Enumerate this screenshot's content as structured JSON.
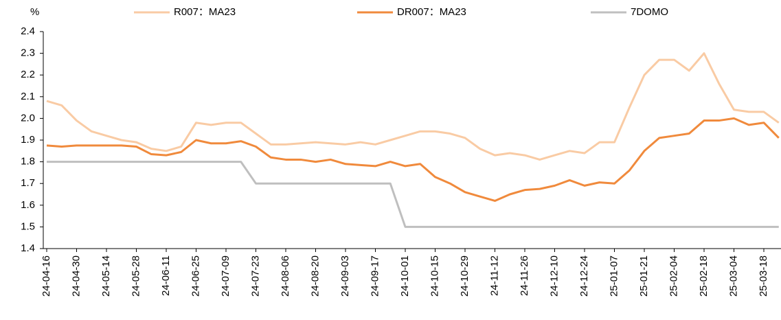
{
  "chart_data": {
    "type": "line",
    "y_label": "%",
    "categories": [
      "24-04-16",
      null,
      "24-04-30",
      null,
      "24-05-14",
      null,
      "24-05-28",
      null,
      "24-06-11",
      null,
      "24-06-25",
      null,
      "24-07-09",
      null,
      "24-07-23",
      null,
      "24-08-06",
      null,
      "24-08-20",
      null,
      "24-09-03",
      null,
      "24-09-17",
      null,
      "24-10-01",
      null,
      "24-10-15",
      null,
      "24-10-29",
      null,
      "24-11-12",
      null,
      "24-11-26",
      null,
      "24-12-10",
      null,
      "24-12-24",
      null,
      "25-01-07",
      null,
      "25-01-21",
      null,
      "25-02-04",
      null,
      "25-02-18",
      null,
      "25-03-04",
      null,
      "25-03-18",
      null
    ],
    "series": [
      {
        "name": "R007：MA23",
        "color": "#f9cba4",
        "values": [
          2.08,
          2.06,
          1.99,
          1.94,
          1.92,
          1.9,
          1.89,
          1.86,
          1.85,
          1.87,
          1.98,
          1.97,
          1.98,
          1.98,
          1.93,
          1.88,
          1.88,
          1.885,
          1.89,
          1.885,
          1.88,
          1.89,
          1.88,
          1.9,
          1.92,
          1.94,
          1.94,
          1.93,
          1.91,
          1.86,
          1.83,
          1.84,
          1.83,
          1.81,
          1.83,
          1.85,
          1.84,
          1.89,
          1.89,
          2.05,
          2.2,
          2.27,
          2.27,
          2.22,
          2.3,
          2.16,
          2.04,
          2.03,
          2.03,
          1.98
        ]
      },
      {
        "name": "DR007：MA23",
        "color": "#f08a3c",
        "values": [
          1.875,
          1.87,
          1.875,
          1.875,
          1.875,
          1.875,
          1.87,
          1.835,
          1.83,
          1.845,
          1.9,
          1.885,
          1.885,
          1.895,
          1.87,
          1.82,
          1.81,
          1.81,
          1.8,
          1.81,
          1.79,
          1.785,
          1.78,
          1.8,
          1.78,
          1.79,
          1.73,
          1.7,
          1.66,
          1.64,
          1.62,
          1.65,
          1.67,
          1.675,
          1.69,
          1.715,
          1.69,
          1.705,
          1.7,
          1.76,
          1.85,
          1.91,
          1.92,
          1.93,
          1.99,
          1.99,
          2.0,
          1.97,
          1.98,
          1.91
        ]
      },
      {
        "name": "7DOMO",
        "color": "#bfbfbf",
        "values": [
          1.8,
          1.8,
          1.8,
          1.8,
          1.8,
          1.8,
          1.8,
          1.8,
          1.8,
          1.8,
          1.8,
          1.8,
          1.8,
          1.8,
          1.7,
          1.7,
          1.7,
          1.7,
          1.7,
          1.7,
          1.7,
          1.7,
          1.7,
          1.7,
          1.5,
          1.5,
          1.5,
          1.5,
          1.5,
          1.5,
          1.5,
          1.5,
          1.5,
          1.5,
          1.5,
          1.5,
          1.5,
          1.5,
          1.5,
          1.5,
          1.5,
          1.5,
          1.5,
          1.5,
          1.5,
          1.5,
          1.5,
          1.5,
          1.5,
          1.5
        ]
      }
    ],
    "ylim": [
      1.4,
      2.4
    ],
    "yticks": [
      1.4,
      1.5,
      1.6,
      1.7,
      1.8,
      1.9,
      {
        "value": 2,
        "label": "2.0"
      },
      2.1,
      2.2,
      2.3,
      2.4
    ],
    "grid": false
  }
}
